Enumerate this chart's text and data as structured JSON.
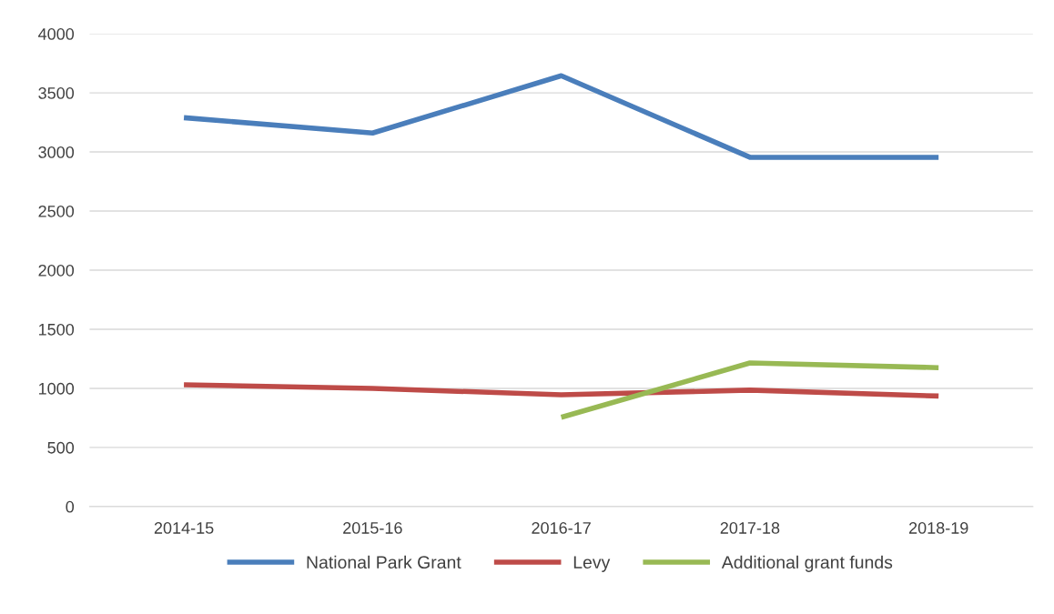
{
  "chart_data": {
    "type": "line",
    "categories": [
      "2014-15",
      "2015-16",
      "2016-17",
      "2017-18",
      "2018-19"
    ],
    "series": [
      {
        "name": "National Park Grant",
        "color": "#4a7ebb",
        "values": [
          3290,
          3160,
          3645,
          2955,
          2955
        ]
      },
      {
        "name": "Levy",
        "color": "#be4b48",
        "values": [
          1030,
          1000,
          945,
          985,
          935
        ]
      },
      {
        "name": "Additional grant funds",
        "color": "#98b954",
        "values": [
          null,
          null,
          755,
          1215,
          1175
        ]
      }
    ],
    "ylim": [
      0,
      4000
    ],
    "yticks": [
      0,
      500,
      1000,
      1500,
      2000,
      2500,
      3000,
      3500,
      4000
    ],
    "grid": "y",
    "legend": "bottom",
    "marker": "none",
    "line_style": "solid"
  }
}
